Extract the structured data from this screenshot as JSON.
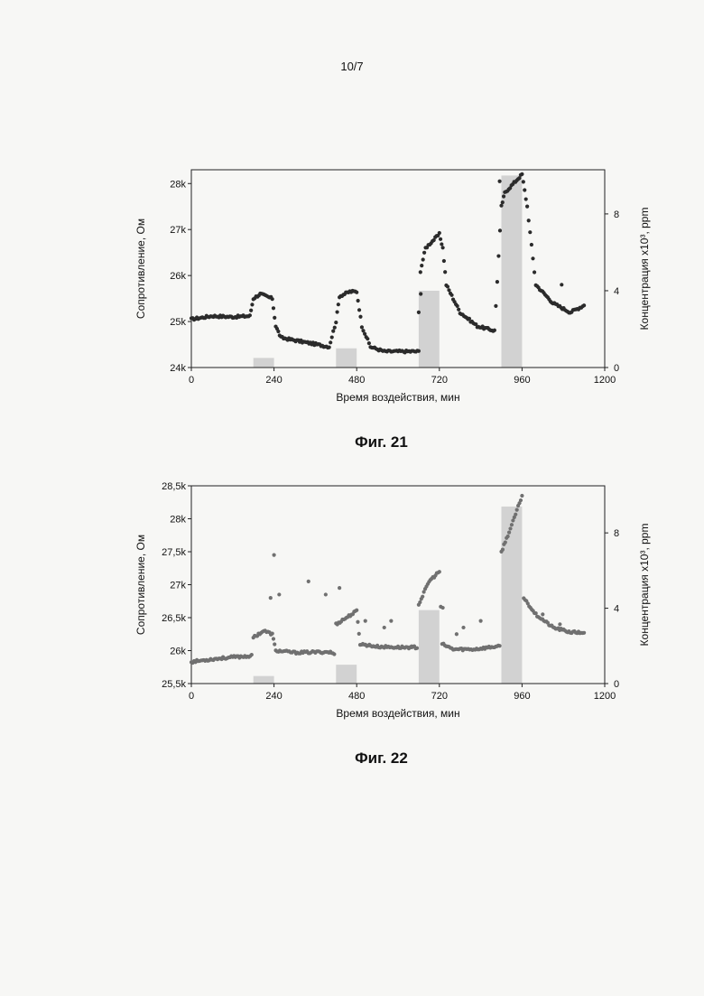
{
  "page_number": "10/7",
  "colors": {
    "marker_dark": "#2b2b2b",
    "marker_gray": "#707070",
    "bar": "#d2d2d2",
    "axis": "#222222"
  },
  "chart_data": [
    {
      "type": "scatter",
      "caption": "Фиг. 21",
      "xlabel": "Время воздействия, мин",
      "ylabel": "Сопротивление, Ом",
      "y2label": "Концентрация x10³, ppm",
      "xlim": [
        0,
        1200
      ],
      "ylim": [
        24000,
        28300
      ],
      "y2lim": [
        0,
        10.3
      ],
      "xticks": [
        "0",
        "240",
        "480",
        "720",
        "960",
        "1200"
      ],
      "yticks": [
        "24k",
        "25k",
        "26k",
        "27k",
        "28k"
      ],
      "y2ticks": [
        "0",
        "4",
        "8"
      ],
      "marker_color": "#2b2b2b",
      "bars": [
        {
          "x0": 180,
          "x1": 240,
          "value": 0.5
        },
        {
          "x0": 420,
          "x1": 480,
          "value": 1.0
        },
        {
          "x0": 660,
          "x1": 720,
          "value": 4.0
        },
        {
          "x0": 900,
          "x1": 960,
          "value": 10.0
        }
      ],
      "series_points": [
        [
          0,
          25050
        ],
        [
          60,
          25120
        ],
        [
          120,
          25100
        ],
        [
          170,
          25120
        ],
        [
          180,
          25500
        ],
        [
          200,
          25600
        ],
        [
          235,
          25500
        ],
        [
          245,
          24900
        ],
        [
          260,
          24650
        ],
        [
          330,
          24550
        ],
        [
          400,
          24450
        ],
        [
          420,
          25000
        ],
        [
          430,
          25550
        ],
        [
          460,
          25650
        ],
        [
          480,
          25650
        ],
        [
          495,
          24900
        ],
        [
          520,
          24450
        ],
        [
          560,
          24350
        ],
        [
          660,
          24350
        ],
        [
          665,
          26100
        ],
        [
          680,
          26600
        ],
        [
          720,
          26900
        ],
        [
          730,
          26600
        ],
        [
          740,
          25800
        ],
        [
          780,
          25200
        ],
        [
          830,
          24900
        ],
        [
          880,
          24800
        ],
        [
          900,
          27500
        ],
        [
          910,
          27800
        ],
        [
          960,
          28200
        ],
        [
          975,
          27500
        ],
        [
          1000,
          25800
        ],
        [
          1050,
          25400
        ],
        [
          1100,
          25200
        ],
        [
          1140,
          25350
        ]
      ],
      "outliers": [
        [
          660,
          25200
        ],
        [
          666,
          25600
        ],
        [
          895,
          28050
        ],
        [
          1075,
          25800
        ]
      ]
    },
    {
      "type": "scatter",
      "caption": "Фиг. 22",
      "xlabel": "Время воздействия, мин",
      "ylabel": "Сопротивление, Ом",
      "y2label": "Концентрация x10³, ppm",
      "xlim": [
        0,
        1200
      ],
      "ylim": [
        25500,
        28500
      ],
      "y2lim": [
        0,
        10.5
      ],
      "xticks": [
        "0",
        "240",
        "480",
        "720",
        "960",
        "1200"
      ],
      "yticks": [
        "25,5k",
        "26k",
        "26,5k",
        "27k",
        "27,5k",
        "28k",
        "28,5k"
      ],
      "y2ticks": [
        "0",
        "4",
        "8"
      ],
      "marker_color": "#707070",
      "bars": [
        {
          "x0": 180,
          "x1": 240,
          "value": 0.4
        },
        {
          "x0": 420,
          "x1": 480,
          "value": 1.0
        },
        {
          "x0": 660,
          "x1": 720,
          "value": 3.9
        },
        {
          "x0": 900,
          "x1": 960,
          "value": 9.4
        }
      ],
      "series_points": [
        [
          0,
          25830
        ],
        [
          60,
          25870
        ],
        [
          120,
          25900
        ],
        [
          175,
          25920
        ],
        [
          180,
          26200
        ],
        [
          210,
          26300
        ],
        [
          235,
          26250
        ],
        [
          245,
          26000
        ],
        [
          300,
          25970
        ],
        [
          400,
          25980
        ],
        [
          415,
          25950
        ],
        [
          420,
          26400
        ],
        [
          450,
          26500
        ],
        [
          480,
          26600
        ],
        [
          490,
          26100
        ],
        [
          540,
          26060
        ],
        [
          600,
          26050
        ],
        [
          655,
          26050
        ],
        [
          660,
          26700
        ],
        [
          690,
          27050
        ],
        [
          720,
          27200
        ],
        [
          728,
          26100
        ],
        [
          760,
          26020
        ],
        [
          820,
          26020
        ],
        [
          880,
          26060
        ],
        [
          895,
          26060
        ],
        [
          900,
          27500
        ],
        [
          930,
          27900
        ],
        [
          960,
          28350
        ],
        [
          965,
          26800
        ],
        [
          1000,
          26550
        ],
        [
          1050,
          26350
        ],
        [
          1100,
          26280
        ],
        [
          1140,
          26270
        ]
      ],
      "outliers": [
        [
          230,
          26800
        ],
        [
          240,
          27450
        ],
        [
          255,
          26850
        ],
        [
          340,
          27050
        ],
        [
          390,
          26850
        ],
        [
          430,
          26950
        ],
        [
          505,
          26450
        ],
        [
          560,
          26350
        ],
        [
          580,
          26450
        ],
        [
          640,
          26050
        ],
        [
          730,
          26650
        ],
        [
          770,
          26250
        ],
        [
          790,
          26350
        ],
        [
          840,
          26450
        ],
        [
          1020,
          26550
        ],
        [
          1070,
          26400
        ]
      ]
    }
  ]
}
